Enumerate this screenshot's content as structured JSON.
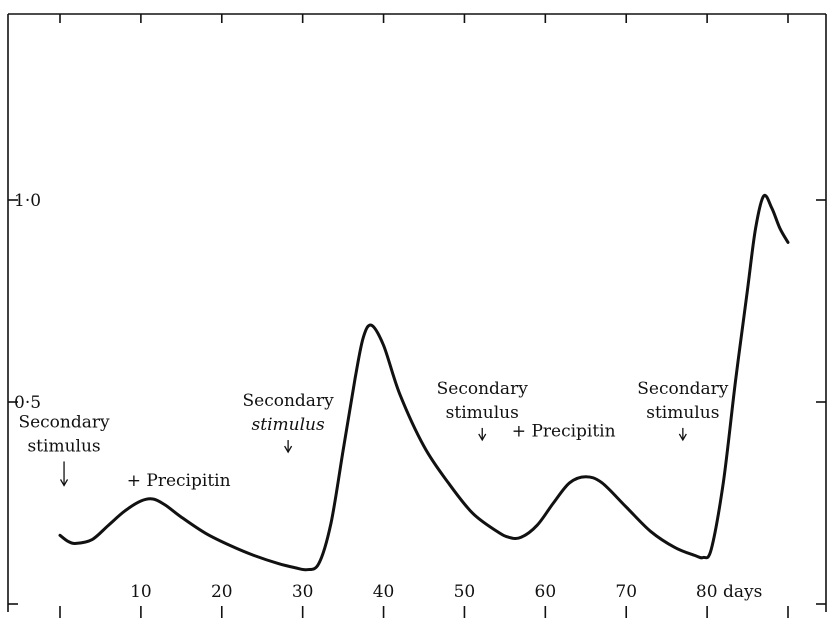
{
  "chart_data": {
    "type": "line",
    "title": "",
    "xlabel": "",
    "ylabel": "",
    "x_unit": "days",
    "xlim": [
      -1,
      92
    ],
    "ylim": [
      0,
      1.2
    ],
    "x_tick_labels": [
      {
        "x": 10,
        "label": "10"
      },
      {
        "x": 20,
        "label": "20"
      },
      {
        "x": 30,
        "label": "30"
      },
      {
        "x": 40,
        "label": "40"
      },
      {
        "x": 50,
        "label": "50"
      },
      {
        "x": 60,
        "label": "60"
      },
      {
        "x": 70,
        "label": "70"
      },
      {
        "x": 80,
        "label": "80 days"
      }
    ],
    "x_ticks": [
      0,
      10,
      20,
      30,
      40,
      50,
      60,
      70,
      80,
      90
    ],
    "y_tick_labels": [
      {
        "y": 0.5,
        "label": "0·5"
      },
      {
        "y": 1.0,
        "label": "1·0"
      }
    ],
    "y_ticks": [
      0.5,
      1.0
    ],
    "series": [
      {
        "x": [
          0,
          1,
          2,
          4,
          6,
          8,
          10,
          11.5,
          13,
          15,
          18,
          21,
          24,
          27,
          29,
          30.5,
          32,
          33.5,
          35,
          36.5,
          37.5,
          38.5,
          40,
          42,
          45,
          48,
          51,
          54,
          55.5,
          57,
          59,
          61,
          63,
          65,
          67,
          70,
          73,
          76,
          78.5,
          79.5,
          80.5,
          82,
          83.5,
          85,
          86,
          87,
          88,
          89,
          90
        ],
        "y": [
          0.17,
          0.155,
          0.15,
          0.16,
          0.195,
          0.23,
          0.255,
          0.26,
          0.245,
          0.215,
          0.175,
          0.145,
          0.12,
          0.1,
          0.09,
          0.085,
          0.1,
          0.2,
          0.38,
          0.56,
          0.66,
          0.69,
          0.64,
          0.52,
          0.39,
          0.3,
          0.225,
          0.18,
          0.165,
          0.165,
          0.195,
          0.25,
          0.3,
          0.315,
          0.3,
          0.24,
          0.18,
          0.14,
          0.12,
          0.115,
          0.135,
          0.3,
          0.55,
          0.78,
          0.93,
          1.01,
          0.98,
          0.93,
          0.895
        ]
      }
    ],
    "annotations": [
      {
        "id": "ss1",
        "lines": [
          "Secondary",
          "stimulus"
        ],
        "italic": [
          false,
          false
        ],
        "arrow_x": 0.5,
        "text_x": 0.5,
        "text_y": 0.437
      },
      {
        "id": "p1",
        "lines": [
          "+ Precipitin"
        ],
        "italic": [
          false
        ],
        "arrow_x": null,
        "text_x": 13.2,
        "text_y": 0.292
      },
      {
        "id": "ss2",
        "lines": [
          "Secondary",
          "stimulus"
        ],
        "italic": [
          false,
          true
        ],
        "arrow_x": 28.2,
        "text_x": 28.2,
        "text_y": 0.49
      },
      {
        "id": "ss3",
        "lines": [
          "Secondary",
          "stimulus"
        ],
        "italic": [
          false,
          false
        ],
        "arrow_x": 52.2,
        "text_x": 52.2,
        "text_y": 0.52
      },
      {
        "id": "p2",
        "lines": [
          "+ Precipitin"
        ],
        "italic": [
          false
        ],
        "arrow_x": null,
        "text_x": 60.8,
        "text_y": 0.415
      },
      {
        "id": "ss4",
        "lines": [
          "Secondary",
          "stimulus"
        ],
        "italic": [
          false,
          false
        ],
        "arrow_x": 77,
        "text_x": 77,
        "text_y": 0.52
      }
    ]
  }
}
